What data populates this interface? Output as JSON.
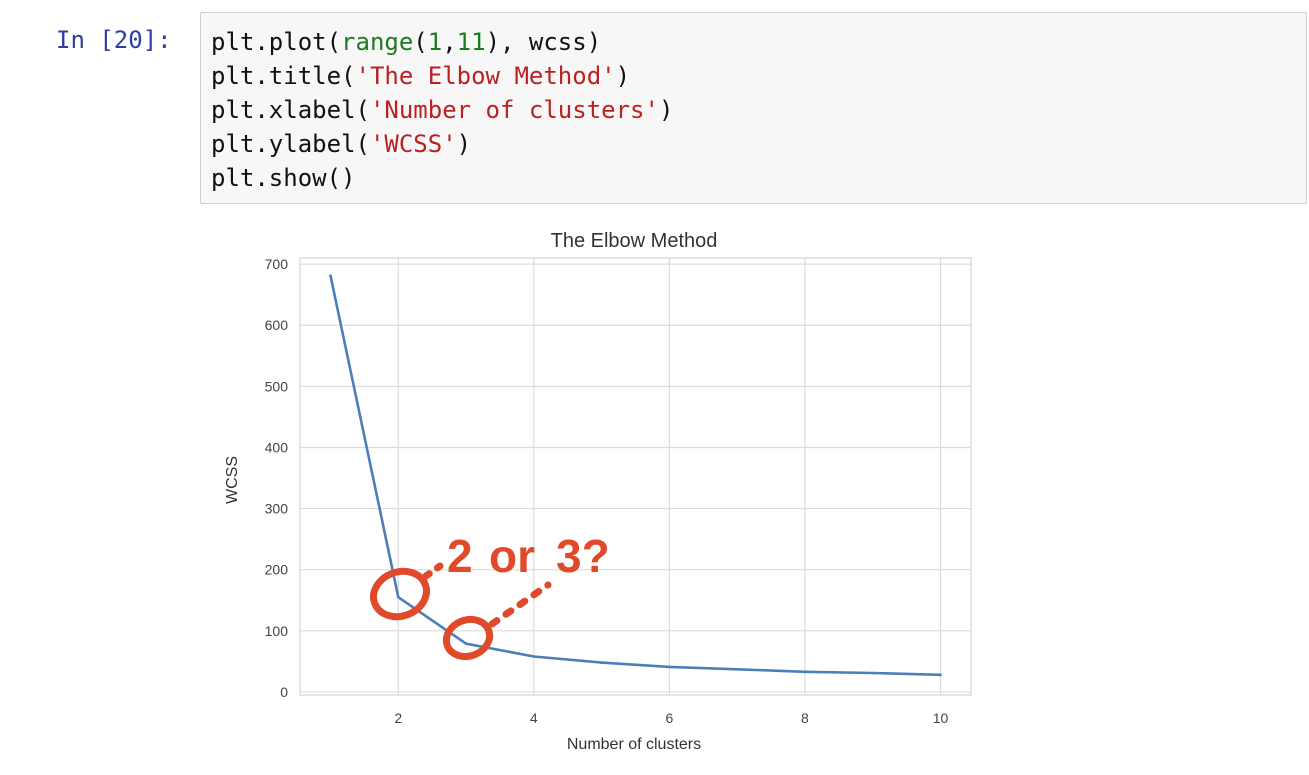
{
  "cell": {
    "prompt": "In [20]:",
    "code": [
      {
        "tokens": [
          {
            "t": "plt.plot("
          },
          {
            "t": "range",
            "c": "tok-fn"
          },
          {
            "t": "("
          },
          {
            "t": "1",
            "c": "tok-num"
          },
          {
            "t": ","
          },
          {
            "t": "11",
            "c": "tok-num"
          },
          {
            "t": "), wcss)"
          }
        ]
      },
      {
        "tokens": [
          {
            "t": "plt.title("
          },
          {
            "t": "'The Elbow Method'",
            "c": "tok-str"
          },
          {
            "t": ")"
          }
        ]
      },
      {
        "tokens": [
          {
            "t": "plt.xlabel("
          },
          {
            "t": "'Number of clusters'",
            "c": "tok-str"
          },
          {
            "t": ")"
          }
        ]
      },
      {
        "tokens": [
          {
            "t": "plt.ylabel("
          },
          {
            "t": "'WCSS'",
            "c": "tok-str"
          },
          {
            "t": ")"
          }
        ]
      },
      {
        "tokens": [
          {
            "t": "plt.show()"
          }
        ]
      }
    ]
  },
  "chart_data": {
    "type": "line",
    "title": "The Elbow Method",
    "xlabel": "Number of clusters",
    "ylabel": "WCSS",
    "x": [
      1,
      2,
      3,
      4,
      5,
      6,
      7,
      8,
      9,
      10
    ],
    "series": [
      {
        "values": [
          681,
          155,
          79,
          58,
          48,
          41,
          37,
          33,
          31,
          28
        ]
      }
    ],
    "xlim": [
      0.55,
      10.45
    ],
    "ylim": [
      -5,
      710
    ],
    "xticks": [
      2,
      4,
      6,
      8,
      10
    ],
    "yticks": [
      0,
      100,
      200,
      300,
      400,
      500,
      600,
      700
    ],
    "grid": true,
    "line_color": "#4c7fb8",
    "annotation": {
      "text_a": "2",
      "text_b": "or",
      "text_c": "3?",
      "color": "#e04a2a"
    }
  }
}
